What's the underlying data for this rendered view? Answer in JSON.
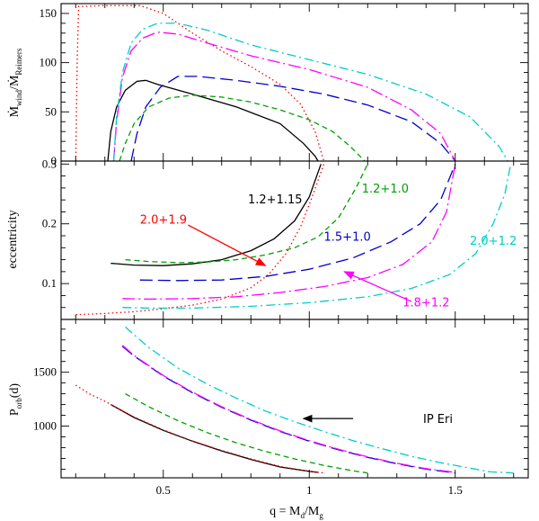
{
  "colors": {
    "1.2+1.15": "#000000",
    "2.0+1.9": "#ff0000",
    "1.2+1.0": "#00a000",
    "1.5+1.0": "#0000cc",
    "1.8+1.2": "#ff00ff",
    "2.0+1.2": "#00cccc"
  },
  "chart_data": [
    {
      "type": "line",
      "panel": "top",
      "ylabel_main": "Ṁ",
      "ylabel_sub1": "wind",
      "ylabel_mid": "/Ṁ",
      "ylabel_sub2": "Reimers",
      "xlim": [
        0.15,
        1.75
      ],
      "ylim": [
        0,
        160
      ],
      "yticks": [
        0,
        50,
        100,
        150
      ],
      "series": [
        {
          "name": "1.2+1.15",
          "points": [
            [
              0.31,
              0
            ],
            [
              0.32,
              30
            ],
            [
              0.34,
              55
            ],
            [
              0.37,
              72
            ],
            [
              0.41,
              81
            ],
            [
              0.44,
              82
            ],
            [
              0.48,
              78
            ],
            [
              0.6,
              68
            ],
            [
              0.75,
              55
            ],
            [
              0.9,
              38
            ],
            [
              0.98,
              18
            ],
            [
              1.02,
              5
            ],
            [
              1.03,
              0
            ]
          ]
        },
        {
          "name": "2.0+1.9",
          "points": [
            [
              0.2,
              0
            ],
            [
              0.205,
              100
            ],
            [
              0.21,
              157
            ],
            [
              0.3,
              158
            ],
            [
              0.42,
              158
            ],
            [
              0.5,
              150
            ],
            [
              0.6,
              130
            ],
            [
              0.7,
              112
            ],
            [
              0.8,
              96
            ],
            [
              0.9,
              78
            ],
            [
              0.97,
              58
            ],
            [
              1.02,
              30
            ],
            [
              1.04,
              10
            ],
            [
              1.05,
              0
            ]
          ]
        },
        {
          "name": "1.2+1.0",
          "points": [
            [
              0.35,
              0
            ],
            [
              0.37,
              18
            ],
            [
              0.4,
              38
            ],
            [
              0.45,
              55
            ],
            [
              0.52,
              64
            ],
            [
              0.6,
              67
            ],
            [
              0.7,
              65
            ],
            [
              0.8,
              60
            ],
            [
              0.9,
              52
            ],
            [
              1.0,
              42
            ],
            [
              1.08,
              30
            ],
            [
              1.14,
              15
            ],
            [
              1.19,
              0
            ]
          ]
        },
        {
          "name": "1.5+1.0",
          "points": [
            [
              0.39,
              0
            ],
            [
              0.41,
              28
            ],
            [
              0.44,
              55
            ],
            [
              0.49,
              75
            ],
            [
              0.55,
              86
            ],
            [
              0.62,
              86
            ],
            [
              0.75,
              82
            ],
            [
              0.9,
              76
            ],
            [
              1.05,
              68
            ],
            [
              1.2,
              57
            ],
            [
              1.35,
              40
            ],
            [
              1.45,
              18
            ],
            [
              1.5,
              0
            ]
          ]
        },
        {
          "name": "1.8+1.2",
          "points": [
            [
              0.33,
              0
            ],
            [
              0.34,
              40
            ],
            [
              0.36,
              85
            ],
            [
              0.39,
              112
            ],
            [
              0.43,
              125
            ],
            [
              0.48,
              131
            ],
            [
              0.55,
              129
            ],
            [
              0.65,
              120
            ],
            [
              0.8,
              107
            ],
            [
              1.0,
              93
            ],
            [
              1.2,
              75
            ],
            [
              1.35,
              52
            ],
            [
              1.45,
              28
            ],
            [
              1.5,
              0
            ]
          ]
        },
        {
          "name": "2.0+1.2",
          "points": [
            [
              0.33,
              0
            ],
            [
              0.34,
              45
            ],
            [
              0.36,
              90
            ],
            [
              0.39,
              120
            ],
            [
              0.43,
              134
            ],
            [
              0.48,
              140
            ],
            [
              0.55,
              140
            ],
            [
              0.65,
              133
            ],
            [
              0.8,
              118
            ],
            [
              1.0,
              103
            ],
            [
              1.2,
              88
            ],
            [
              1.4,
              68
            ],
            [
              1.55,
              45
            ],
            [
              1.65,
              15
            ],
            [
              1.68,
              0
            ]
          ]
        }
      ]
    },
    {
      "type": "line",
      "panel": "middle",
      "ylabel": "eccentricity",
      "xlim": [
        0.15,
        1.75
      ],
      "ylim": [
        0.04,
        0.305
      ],
      "yticks": [
        0.1,
        0.2,
        0.3
      ],
      "labels": [
        {
          "name": "1.2+1.15",
          "text": "1.2+1.15",
          "x": 0.79,
          "y": 0.234
        },
        {
          "name": "2.0+1.9",
          "text": "2.0+1.9",
          "x": 0.42,
          "y": 0.2
        },
        {
          "name": "1.2+1.0",
          "text": "1.2+1.0",
          "x": 1.18,
          "y": 0.252
        },
        {
          "name": "1.5+1.0",
          "text": "1.5+1.0",
          "x": 1.05,
          "y": 0.172
        },
        {
          "name": "2.0+1.2",
          "text": "2.0+1.2",
          "x": 1.55,
          "y": 0.165
        },
        {
          "name": "1.8+1.2",
          "text": "1.8+1.2",
          "x": 1.32,
          "y": 0.062
        }
      ],
      "arrows": [
        {
          "name": "2.0+1.9",
          "from": [
            0.585,
            0.198
          ],
          "to": [
            0.85,
            0.13
          ]
        },
        {
          "name": "1.8+1.2",
          "from": [
            1.35,
            0.07
          ],
          "to": [
            1.12,
            0.12
          ]
        }
      ],
      "series": [
        {
          "name": "1.2+1.15",
          "points": [
            [
              0.32,
              0.134
            ],
            [
              0.4,
              0.131
            ],
            [
              0.5,
              0.13
            ],
            [
              0.6,
              0.133
            ],
            [
              0.7,
              0.14
            ],
            [
              0.8,
              0.155
            ],
            [
              0.88,
              0.175
            ],
            [
              0.95,
              0.205
            ],
            [
              1.0,
              0.245
            ],
            [
              1.04,
              0.3
            ]
          ]
        },
        {
          "name": "2.0+1.9",
          "points": [
            [
              0.2,
              0.048
            ],
            [
              0.3,
              0.05
            ],
            [
              0.4,
              0.053
            ],
            [
              0.5,
              0.058
            ],
            [
              0.6,
              0.064
            ],
            [
              0.7,
              0.074
            ],
            [
              0.8,
              0.093
            ],
            [
              0.86,
              0.115
            ],
            [
              0.92,
              0.15
            ],
            [
              0.97,
              0.195
            ],
            [
              1.01,
              0.245
            ],
            [
              1.05,
              0.3
            ]
          ]
        },
        {
          "name": "1.2+1.0",
          "points": [
            [
              0.37,
              0.14
            ],
            [
              0.45,
              0.137
            ],
            [
              0.55,
              0.135
            ],
            [
              0.65,
              0.136
            ],
            [
              0.75,
              0.14
            ],
            [
              0.85,
              0.148
            ],
            [
              0.95,
              0.16
            ],
            [
              1.03,
              0.178
            ],
            [
              1.1,
              0.21
            ],
            [
              1.16,
              0.26
            ],
            [
              1.2,
              0.3
            ]
          ]
        },
        {
          "name": "1.5+1.0",
          "points": [
            [
              0.42,
              0.106
            ],
            [
              0.55,
              0.105
            ],
            [
              0.7,
              0.106
            ],
            [
              0.85,
              0.112
            ],
            [
              1.0,
              0.124
            ],
            [
              1.15,
              0.143
            ],
            [
              1.28,
              0.17
            ],
            [
              1.38,
              0.2
            ],
            [
              1.45,
              0.24
            ],
            [
              1.5,
              0.3
            ]
          ]
        },
        {
          "name": "1.8+1.2",
          "points": [
            [
              0.36,
              0.075
            ],
            [
              0.45,
              0.074
            ],
            [
              0.6,
              0.075
            ],
            [
              0.75,
              0.078
            ],
            [
              0.9,
              0.085
            ],
            [
              1.05,
              0.095
            ],
            [
              1.2,
              0.11
            ],
            [
              1.32,
              0.132
            ],
            [
              1.42,
              0.17
            ],
            [
              1.47,
              0.22
            ],
            [
              1.5,
              0.3
            ]
          ]
        },
        {
          "name": "2.0+1.2",
          "points": [
            [
              0.36,
              0.06
            ],
            [
              0.45,
              0.059
            ],
            [
              0.6,
              0.059
            ],
            [
              0.8,
              0.062
            ],
            [
              1.0,
              0.068
            ],
            [
              1.2,
              0.078
            ],
            [
              1.35,
              0.092
            ],
            [
              1.48,
              0.115
            ],
            [
              1.57,
              0.15
            ],
            [
              1.63,
              0.2
            ],
            [
              1.67,
              0.25
            ],
            [
              1.69,
              0.3
            ]
          ]
        }
      ]
    },
    {
      "type": "line",
      "panel": "bottom",
      "ylabel_main": "P",
      "ylabel_sub": "orb",
      "ylabel_unit": "(d)",
      "xlabel": "q = M",
      "xlabel_sub1": "d",
      "xlabel_mid": "/M",
      "xlabel_sub2": "g",
      "xlim": [
        0.15,
        1.75
      ],
      "ylim": [
        520,
        1990
      ],
      "xticks": [
        0.5,
        1,
        1.5
      ],
      "yticks": [
        1000,
        1500
      ],
      "annotation": {
        "text": "IP Eri",
        "arrow_from": [
          1.15,
          1070
        ],
        "arrow_to": [
          0.98,
          1070
        ]
      },
      "series": [
        {
          "name": "1.2+1.15",
          "points": [
            [
              0.32,
              1200
            ],
            [
              0.4,
              1080
            ],
            [
              0.5,
              960
            ],
            [
              0.6,
              860
            ],
            [
              0.7,
              770
            ],
            [
              0.8,
              690
            ],
            [
              0.9,
              620
            ],
            [
              1.0,
              580
            ],
            [
              1.03,
              570
            ]
          ]
        },
        {
          "name": "2.0+1.9",
          "points": [
            [
              0.2,
              1380
            ],
            [
              0.25,
              1295
            ],
            [
              0.3,
              1230
            ],
            [
              0.4,
              1085
            ],
            [
              0.5,
              965
            ],
            [
              0.6,
              862
            ],
            [
              0.7,
              775
            ],
            [
              0.8,
              695
            ],
            [
              0.9,
              625
            ],
            [
              1.0,
              580
            ],
            [
              1.05,
              565
            ]
          ]
        },
        {
          "name": "1.2+1.0",
          "points": [
            [
              0.37,
              1300
            ],
            [
              0.45,
              1180
            ],
            [
              0.55,
              1050
            ],
            [
              0.65,
              940
            ],
            [
              0.75,
              845
            ],
            [
              0.85,
              765
            ],
            [
              0.95,
              695
            ],
            [
              1.05,
              635
            ],
            [
              1.15,
              585
            ],
            [
              1.2,
              565
            ]
          ]
        },
        {
          "name": "1.5+1.0",
          "points": [
            [
              0.36,
              1740
            ],
            [
              0.4,
              1650
            ],
            [
              0.5,
              1465
            ],
            [
              0.6,
              1310
            ],
            [
              0.7,
              1175
            ],
            [
              0.8,
              1055
            ],
            [
              0.9,
              950
            ],
            [
              1.0,
              860
            ],
            [
              1.1,
              780
            ],
            [
              1.2,
              710
            ],
            [
              1.3,
              650
            ],
            [
              1.4,
              600
            ],
            [
              1.5,
              565
            ]
          ]
        },
        {
          "name": "1.8+1.2",
          "points": [
            [
              0.36,
              1750
            ],
            [
              0.4,
              1655
            ],
            [
              0.5,
              1470
            ],
            [
              0.6,
              1315
            ],
            [
              0.7,
              1180
            ],
            [
              0.8,
              1060
            ],
            [
              0.9,
              955
            ],
            [
              1.0,
              865
            ],
            [
              1.1,
              785
            ],
            [
              1.2,
              715
            ],
            [
              1.3,
              655
            ],
            [
              1.4,
              605
            ],
            [
              1.5,
              570
            ]
          ]
        },
        {
          "name": "2.0+1.2",
          "points": [
            [
              0.37,
              1920
            ],
            [
              0.45,
              1730
            ],
            [
              0.55,
              1540
            ],
            [
              0.65,
              1390
            ],
            [
              0.75,
              1260
            ],
            [
              0.85,
              1140
            ],
            [
              0.95,
              1040
            ],
            [
              1.05,
              950
            ],
            [
              1.15,
              865
            ],
            [
              1.25,
              790
            ],
            [
              1.35,
              720
            ],
            [
              1.45,
              660
            ],
            [
              1.55,
              610
            ],
            [
              1.62,
              575
            ],
            [
              1.7,
              565
            ]
          ]
        }
      ]
    }
  ]
}
